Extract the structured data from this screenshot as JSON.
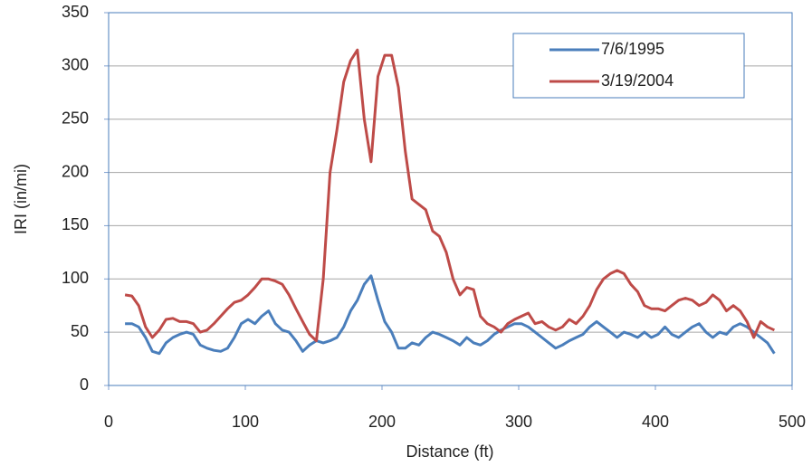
{
  "chart_data": {
    "type": "line",
    "xlabel": "Distance (ft)",
    "ylabel": "IRI (in/mi)",
    "xlim": [
      0,
      500
    ],
    "xticks": [
      0,
      100,
      200,
      300,
      400,
      500
    ],
    "ylim": [
      0,
      350
    ],
    "yticks": [
      0,
      50,
      100,
      150,
      200,
      250,
      300,
      350
    ],
    "grid": true,
    "legend": "upper right",
    "x": [
      12,
      17,
      22,
      27,
      32,
      37,
      42,
      47,
      52,
      57,
      62,
      67,
      72,
      77,
      82,
      87,
      92,
      97,
      102,
      107,
      112,
      117,
      122,
      127,
      132,
      137,
      142,
      147,
      152,
      157,
      162,
      167,
      172,
      177,
      182,
      187,
      192,
      197,
      202,
      207,
      212,
      217,
      222,
      227,
      232,
      237,
      242,
      247,
      252,
      257,
      262,
      267,
      272,
      277,
      282,
      287,
      292,
      297,
      302,
      307,
      312,
      317,
      322,
      327,
      332,
      337,
      342,
      347,
      352,
      357,
      362,
      367,
      372,
      377,
      382,
      387,
      392,
      397,
      402,
      407,
      412,
      417,
      422,
      427,
      432,
      437,
      442,
      447,
      452,
      457,
      462,
      467,
      472,
      477,
      482,
      487
    ],
    "series": [
      {
        "name": "7/6/1995",
        "color": "#4a7ebb",
        "values": [
          58,
          58,
          55,
          45,
          32,
          30,
          40,
          45,
          48,
          50,
          48,
          38,
          35,
          33,
          32,
          35,
          45,
          58,
          62,
          58,
          65,
          70,
          58,
          52,
          50,
          42,
          32,
          38,
          42,
          40,
          42,
          45,
          55,
          70,
          80,
          95,
          103,
          80,
          60,
          50,
          35,
          35,
          40,
          38,
          45,
          50,
          48,
          45,
          42,
          38,
          45,
          40,
          38,
          42,
          48,
          52,
          55,
          58,
          58,
          55,
          50,
          45,
          40,
          35,
          38,
          42,
          45,
          48,
          55,
          60,
          55,
          50,
          45,
          50,
          48,
          45,
          50,
          45,
          48,
          55,
          48,
          45,
          50,
          55,
          58,
          50,
          45,
          50,
          48,
          55,
          58,
          55,
          50,
          45,
          40,
          30
        ]
      },
      {
        "name": "3/19/2004",
        "color": "#be4b48",
        "values": [
          85,
          84,
          75,
          55,
          45,
          52,
          62,
          63,
          60,
          60,
          58,
          50,
          52,
          58,
          65,
          72,
          78,
          80,
          85,
          92,
          100,
          100,
          98,
          95,
          85,
          72,
          60,
          48,
          42,
          100,
          200,
          240,
          285,
          305,
          315,
          250,
          210,
          290,
          310,
          310,
          280,
          220,
          175,
          170,
          165,
          145,
          140,
          125,
          100,
          85,
          92,
          90,
          65,
          58,
          55,
          50,
          58,
          62,
          65,
          68,
          58,
          60,
          55,
          52,
          55,
          62,
          58,
          65,
          75,
          90,
          100,
          105,
          108,
          105,
          95,
          88,
          75,
          72,
          72,
          70,
          75,
          80,
          82,
          80,
          75,
          78,
          85,
          80,
          70,
          75,
          70,
          60,
          45,
          60,
          55,
          52
        ]
      }
    ]
  }
}
